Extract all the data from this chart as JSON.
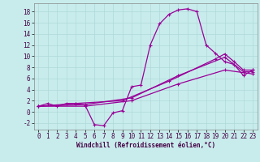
{
  "background_color": "#c8ecec",
  "line_color": "#990099",
  "xlim": [
    -0.5,
    23.5
  ],
  "ylim": [
    -3.2,
    19.5
  ],
  "xticks": [
    0,
    1,
    2,
    3,
    4,
    5,
    6,
    7,
    8,
    9,
    10,
    11,
    12,
    13,
    14,
    15,
    16,
    17,
    18,
    19,
    20,
    21,
    22,
    23
  ],
  "yticks": [
    -2,
    0,
    2,
    4,
    6,
    8,
    10,
    12,
    14,
    16,
    18
  ],
  "curve_main_x": [
    0,
    1,
    2,
    3,
    4,
    5,
    6,
    7,
    8,
    9,
    10,
    11,
    12,
    13,
    14,
    15,
    16,
    17,
    18,
    19,
    20,
    21,
    22,
    23
  ],
  "curve_main_y": [
    1,
    1.5,
    1.0,
    1.5,
    1.5,
    1.2,
    -2.3,
    -2.5,
    -0.2,
    0.2,
    4.5,
    4.8,
    12.0,
    15.8,
    17.5,
    18.3,
    18.5,
    18.0,
    12.0,
    10.5,
    9.0,
    8.5,
    6.5,
    7.5
  ],
  "curve_b_x": [
    0,
    4,
    9,
    14,
    19,
    20,
    21,
    22,
    23
  ],
  "curve_b_y": [
    1,
    1.5,
    2.0,
    5.5,
    9.5,
    10.4,
    9.0,
    7.5,
    7.5
  ],
  "curve_c_x": [
    0,
    5,
    10,
    15,
    20,
    22,
    23
  ],
  "curve_c_y": [
    1,
    1.3,
    2.5,
    6.5,
    9.8,
    7.2,
    7.2
  ],
  "curve_d_x": [
    0,
    5,
    10,
    15,
    20,
    23
  ],
  "curve_d_y": [
    1,
    1.0,
    2.0,
    5.0,
    7.5,
    6.8
  ],
  "xlabel": "Windchill (Refroidissement éolien,°C)",
  "grid_color": "#b0d8d8",
  "tick_fontsize": 5.5,
  "xlabel_fontsize": 5.5
}
